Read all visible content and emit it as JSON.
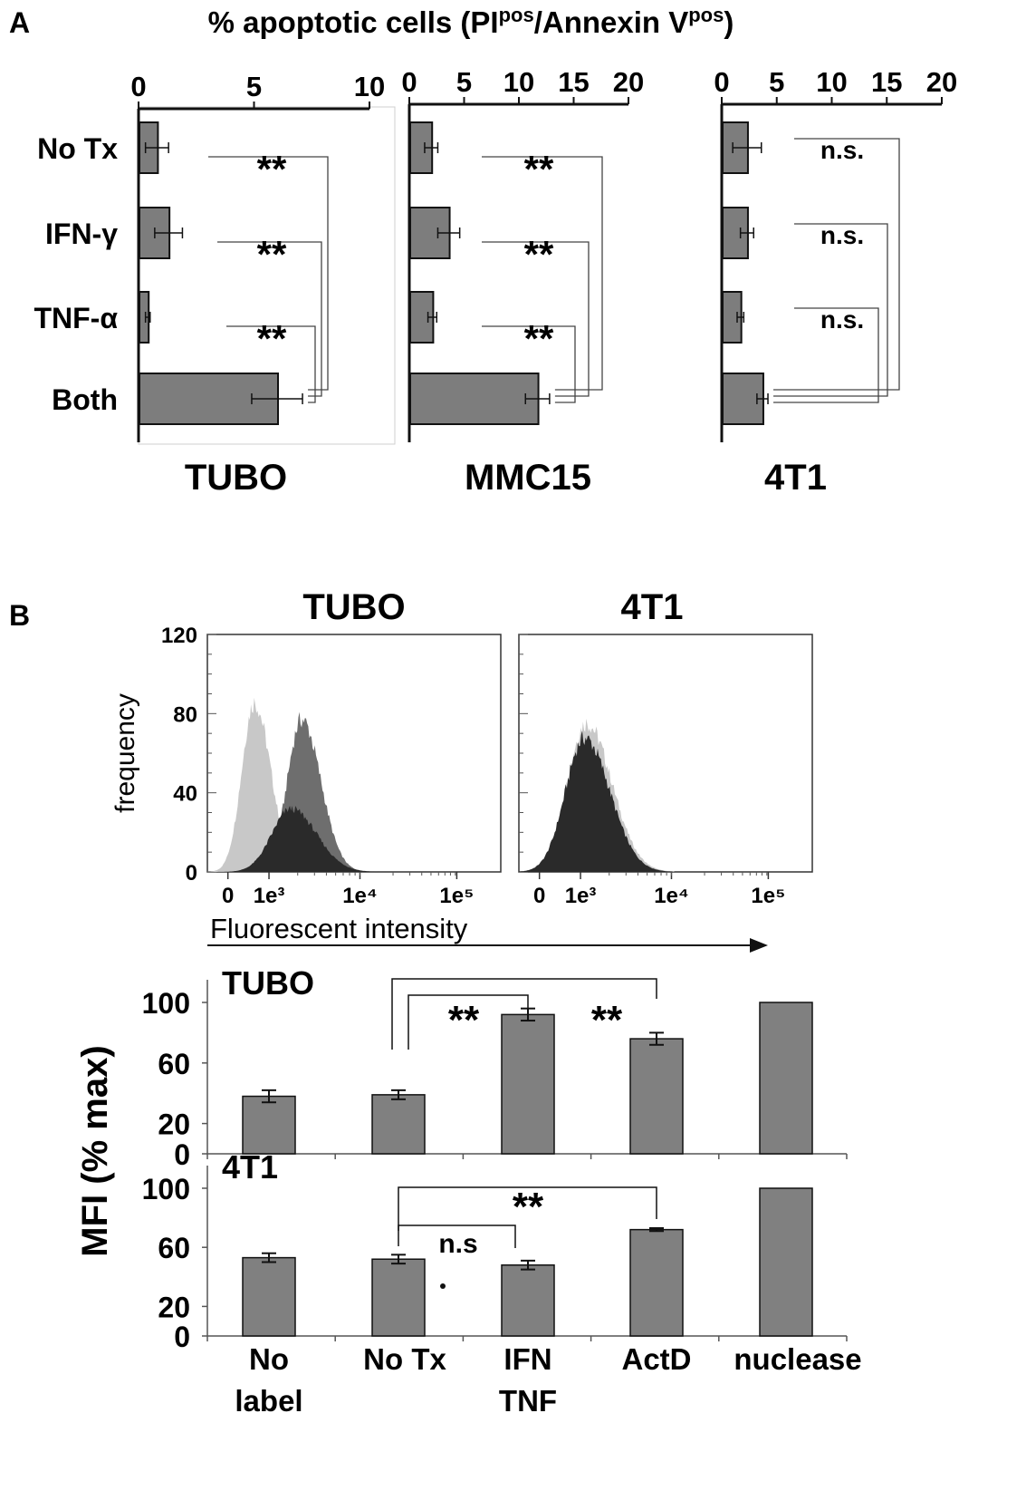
{
  "panels": {
    "a": "A",
    "b": "B"
  },
  "chart_data": [
    {
      "type": "bar",
      "orientation": "horizontal",
      "panel": "A",
      "title": "% apoptotic cells (PI",
      "title_sup1": "pos",
      "title_mid": "/Annexin V",
      "title_sup2": "pos",
      "title_end": ")",
      "categories": [
        "No Tx",
        "IFN-γ",
        "TNF-α",
        "Both"
      ],
      "subplots": [
        {
          "name": "TUBO",
          "xlim": [
            0,
            10
          ],
          "ticks": [
            "0",
            "5",
            "10"
          ],
          "values": [
            0.8,
            1.3,
            0.4,
            6.0
          ],
          "errors": [
            0.5,
            0.6,
            0.1,
            1.1
          ],
          "comparisons": [
            {
              "from": "No Tx",
              "to": "Both",
              "label": "**"
            },
            {
              "from": "IFN-γ",
              "to": "Both",
              "label": "**"
            },
            {
              "from": "TNF-α",
              "to": "Both",
              "label": "**"
            }
          ]
        },
        {
          "name": "MMC15",
          "xlim": [
            0,
            20
          ],
          "ticks": [
            "0",
            "5",
            "10",
            "15",
            "20"
          ],
          "values": [
            2.0,
            3.6,
            2.1,
            11.7
          ],
          "errors": [
            0.6,
            1.0,
            0.4,
            1.1
          ],
          "comparisons": [
            {
              "from": "No Tx",
              "to": "Both",
              "label": "**"
            },
            {
              "from": "IFN-γ",
              "to": "Both",
              "label": "**"
            },
            {
              "from": "TNF-α",
              "to": "Both",
              "label": "**"
            }
          ]
        },
        {
          "name": "4T1",
          "xlim": [
            0,
            20
          ],
          "ticks": [
            "0",
            "5",
            "10",
            "15",
            "20"
          ],
          "values": [
            2.3,
            2.3,
            1.7,
            3.7
          ],
          "errors": [
            1.3,
            0.6,
            0.3,
            0.5
          ],
          "comparisons": [
            {
              "from": "No Tx",
              "to": "Both",
              "label": "n.s."
            },
            {
              "from": "IFN-γ",
              "to": "Both",
              "label": "n.s."
            },
            {
              "from": "TNF-α",
              "to": "Both",
              "label": "n.s."
            }
          ]
        }
      ]
    },
    {
      "type": "area",
      "panel": "B",
      "ylabel": "frequency",
      "xlabel": "Fluorescent intensity",
      "xscale": "log",
      "yticks": [
        "0",
        "40",
        "80",
        "120"
      ],
      "ylim": [
        0,
        120
      ],
      "xticks": [
        "0",
        "1e³",
        "1e⁴",
        "1e⁵"
      ],
      "subplots": [
        {
          "name": "TUBO",
          "series": [
            {
              "color": "#c8c8c8",
              "peak_intensity": 700,
              "peak_frequency": 91,
              "spread_decades": 0.13
            },
            {
              "color": "#6e6e6e",
              "peak_intensity": 2200,
              "peak_frequency": 82,
              "spread_decades": 0.15
            },
            {
              "color": "#2a2a2a",
              "peak_intensity": 1700,
              "peak_frequency": 34,
              "spread_decades": 0.2
            }
          ]
        },
        {
          "name": "4T1",
          "series": [
            {
              "color": "#c8c8c8",
              "peak_intensity": 1150,
              "peak_frequency": 80,
              "spread_decades": 0.2
            },
            {
              "color": "#2a2a2a",
              "peak_intensity": 1100,
              "peak_frequency": 72,
              "spread_decades": 0.2
            }
          ]
        }
      ]
    },
    {
      "type": "bar",
      "panel": "B",
      "ylabel": "MFI (% max)",
      "ylim": [
        0,
        100
      ],
      "yticks": [
        "0",
        "20",
        "60",
        "100"
      ],
      "categories": [
        [
          "No",
          "label"
        ],
        [
          "No Tx"
        ],
        [
          "IFN",
          "TNF"
        ],
        [
          "ActD"
        ],
        [
          "nuclease"
        ]
      ],
      "subplots": [
        {
          "name": "TUBO",
          "values": [
            38,
            39,
            92,
            76,
            100
          ],
          "errors": [
            4,
            3,
            4,
            4,
            0
          ],
          "comparisons": [
            {
              "from": "No Tx",
              "to": "IFN TNF",
              "label": "**"
            },
            {
              "from": "No Tx",
              "to": "ActD",
              "label": "**"
            }
          ]
        },
        {
          "name": "4T1",
          "values": [
            53,
            52,
            48,
            72,
            100
          ],
          "errors": [
            3,
            3,
            3,
            1,
            0
          ],
          "comparisons": [
            {
              "from": "No Tx",
              "to": "IFN TNF",
              "label": "n.s"
            },
            {
              "from": "No Tx",
              "to": "ActD",
              "label": "**"
            }
          ]
        }
      ]
    }
  ]
}
